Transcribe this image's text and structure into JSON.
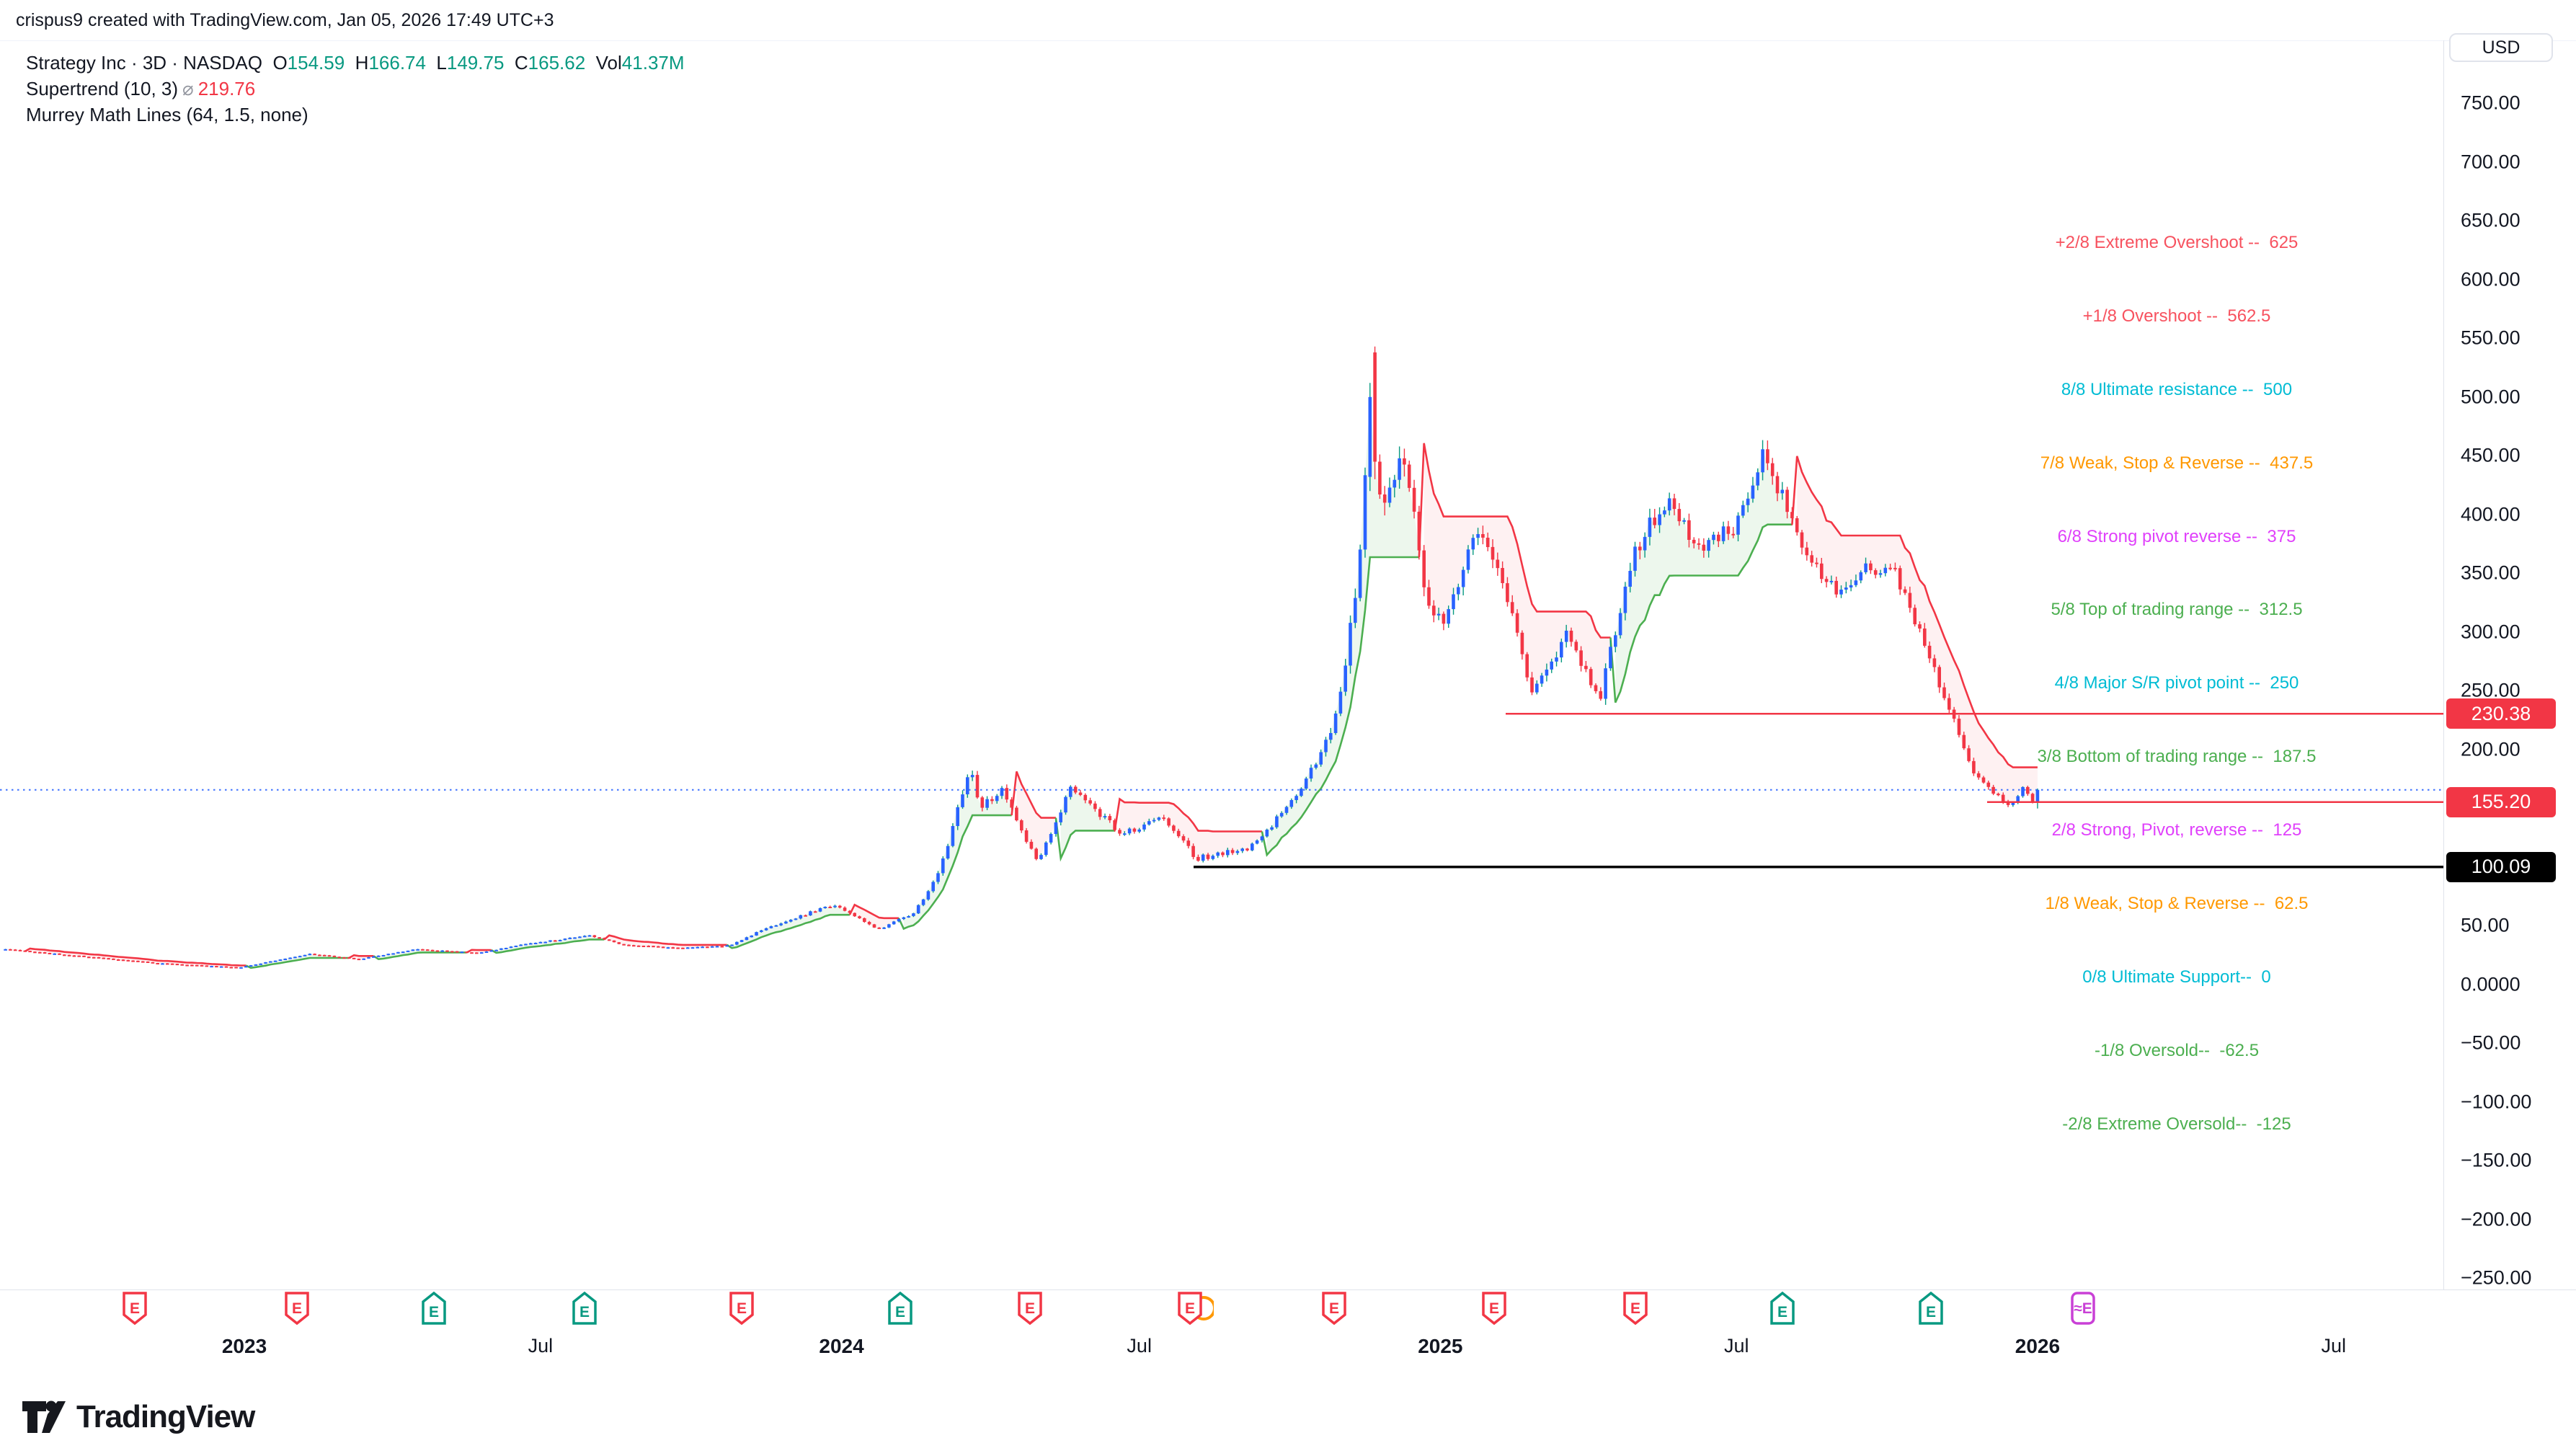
{
  "attribution": "crispus9 created with TradingView.com, Jan 05, 2026 17:49 UTC+3",
  "legend": {
    "symbol_line": {
      "title": "Strategy Inc · 3D · NASDAQ",
      "fields": [
        {
          "label": "O",
          "value": "154.59"
        },
        {
          "label": "H",
          "value": "166.74"
        },
        {
          "label": "L",
          "value": "149.75"
        },
        {
          "label": "C",
          "value": "165.62"
        },
        {
          "label": "Vol",
          "value": "41.37M"
        }
      ]
    },
    "indicators": [
      {
        "name": "Supertrend",
        "params": "(10, 3)",
        "symbol": "⌀",
        "value": "219.76",
        "value_color": "#f23645"
      },
      {
        "name": "Murrey Math Lines",
        "params": "(64, 1.5, none)",
        "symbol": "",
        "value": "",
        "value_color": ""
      }
    ]
  },
  "price_axis": {
    "currency": "USD",
    "ticks": [
      {
        "label": "750.00",
        "value": 750
      },
      {
        "label": "700.00",
        "value": 700
      },
      {
        "label": "650.00",
        "value": 650
      },
      {
        "label": "600.00",
        "value": 600
      },
      {
        "label": "550.00",
        "value": 550
      },
      {
        "label": "500.00",
        "value": 500
      },
      {
        "label": "450.00",
        "value": 450
      },
      {
        "label": "400.00",
        "value": 400
      },
      {
        "label": "350.00",
        "value": 350
      },
      {
        "label": "300.00",
        "value": 300
      },
      {
        "label": "250.00",
        "value": 250
      },
      {
        "label": "200.00",
        "value": 200
      },
      {
        "label": "50.00",
        "value": 50
      },
      {
        "label": "0.0000",
        "value": 0
      },
      {
        "label": "−50.00",
        "value": -50
      },
      {
        "label": "−100.00",
        "value": -100
      },
      {
        "label": "−150.00",
        "value": -150
      },
      {
        "label": "−200.00",
        "value": -200
      },
      {
        "label": "−250.00",
        "value": -250
      }
    ],
    "badges": [
      {
        "label": "230.38",
        "value": 230.38,
        "bg": "#f23645",
        "fg": "#ffffff"
      },
      {
        "label": "155.20",
        "value": 155.2,
        "bg": "#f23645",
        "fg": "#ffffff"
      },
      {
        "label": "100.09",
        "value": 100.09,
        "bg": "#000000",
        "fg": "#ffffff"
      }
    ]
  },
  "time_axis": {
    "ticks": [
      {
        "label": "2023",
        "date": "2023-01-01",
        "bold": true
      },
      {
        "label": "Jul",
        "date": "2023-07-01",
        "bold": false
      },
      {
        "label": "2024",
        "date": "2024-01-01",
        "bold": true
      },
      {
        "label": "Jul",
        "date": "2024-07-01",
        "bold": false
      },
      {
        "label": "2025",
        "date": "2025-01-01",
        "bold": true
      },
      {
        "label": "Jul",
        "date": "2025-07-01",
        "bold": false
      },
      {
        "label": "2026",
        "date": "2026-01-01",
        "bold": true
      },
      {
        "label": "Jul",
        "date": "2026-07-01",
        "bold": false
      }
    ],
    "event_badges": [
      {
        "date": "2022-10-26",
        "kind": "earnings-down",
        "color": "#f23645",
        "letter": "E"
      },
      {
        "date": "2023-02-02",
        "kind": "earnings-down",
        "color": "#f23645",
        "letter": "E"
      },
      {
        "date": "2023-04-27",
        "kind": "earnings-up",
        "color": "#089981",
        "letter": "E"
      },
      {
        "date": "2023-07-28",
        "kind": "earnings-up",
        "color": "#089981",
        "letter": "E"
      },
      {
        "date": "2023-11-01",
        "kind": "earnings-down",
        "color": "#f23645",
        "letter": "E"
      },
      {
        "date": "2024-02-06",
        "kind": "earnings-up",
        "color": "#089981",
        "letter": "E"
      },
      {
        "date": "2024-04-25",
        "kind": "earnings-down",
        "color": "#f23645",
        "letter": "E"
      },
      {
        "date": "2024-08-01",
        "kind": "earnings-down-split",
        "color": "#f23645",
        "letter": "E",
        "split_color": "#ff9800"
      },
      {
        "date": "2024-10-28",
        "kind": "earnings-down",
        "color": "#f23645",
        "letter": "E"
      },
      {
        "date": "2025-02-03",
        "kind": "earnings-down",
        "color": "#f23645",
        "letter": "E"
      },
      {
        "date": "2025-04-30",
        "kind": "earnings-down",
        "color": "#f23645",
        "letter": "E"
      },
      {
        "date": "2025-07-29",
        "kind": "earnings-up",
        "color": "#089981",
        "letter": "E"
      },
      {
        "date": "2025-10-28",
        "kind": "earnings-up",
        "color": "#089981",
        "letter": "E"
      },
      {
        "date": "2026-01-29",
        "kind": "earnings-projected",
        "color": "#c940d6",
        "letter": "≈E"
      }
    ]
  },
  "murrey_labels": [
    {
      "text": "+2/8 Extreme Overshoot --  625",
      "value": 625,
      "color": "#f7525f"
    },
    {
      "text": "+1/8 Overshoot --  562.5",
      "value": 562.5,
      "color": "#f7525f"
    },
    {
      "text": "8/8 Ultimate resistance --  500",
      "value": 500,
      "color": "#00bcd4"
    },
    {
      "text": "7/8 Weak, Stop & Reverse --  437.5",
      "value": 437.5,
      "color": "#ff9800"
    },
    {
      "text": "6/8 Strong pivot reverse --  375",
      "value": 375,
      "color": "#e040fb"
    },
    {
      "text": "5/8 Top of trading range --  312.5",
      "value": 312.5,
      "color": "#4caf50"
    },
    {
      "text": "4/8 Major S/R pivot point --  250",
      "value": 250,
      "color": "#00bcd4"
    },
    {
      "text": "3/8 Bottom of trading range --  187.5",
      "value": 187.5,
      "color": "#4caf50"
    },
    {
      "text": "2/8 Strong, Pivot, reverse --  125",
      "value": 125,
      "color": "#e040fb"
    },
    {
      "text": "1/8 Weak, Stop & Reverse --  62.5",
      "value": 62.5,
      "color": "#ff9800"
    },
    {
      "text": "0/8 Ultimate Support--  0",
      "value": 0,
      "color": "#00bcd4"
    },
    {
      "text": "-1/8 Oversold--  -62.5",
      "value": -62.5,
      "color": "#4caf50"
    },
    {
      "text": "-2/8 Extreme Oversold--  -125",
      "value": -125,
      "color": "#4caf50"
    }
  ],
  "overlays": {
    "current_price_line": {
      "value": 165.62,
      "color": "#2962ff",
      "style": "dotted"
    },
    "rays": [
      {
        "value": 230.38,
        "from": "2025-02-10",
        "color": "#f23645",
        "width": 2.5
      },
      {
        "value": 155.2,
        "from": "2025-12-01",
        "color": "#f23645",
        "width": 2.5
      },
      {
        "value": 100.09,
        "from": "2024-08-03",
        "color": "#000000",
        "width": 3.5
      }
    ]
  },
  "chart_data": {
    "type": "candlestick",
    "title": "Strategy Inc (NASDAQ) — 3D bars with Supertrend (10,3) and Murrey Math Lines (64, 1.5)",
    "timeframe": "3D",
    "x_range": [
      "2022-08-08",
      "2026-07-01"
    ],
    "y_range": [
      -250,
      750
    ],
    "bar_interval_days": 3,
    "last_bar": {
      "o": 154.59,
      "h": 166.74,
      "l": 149.75,
      "c": 165.62
    },
    "anchors": [
      [
        "2022-08-08",
        30,
        0.9
      ],
      [
        "2022-09-16",
        25,
        0.8
      ],
      [
        "2022-11-10",
        18,
        0.9
      ],
      [
        "2022-12-29",
        14.5,
        0.8
      ],
      [
        "2023-02-10",
        26,
        0.8
      ],
      [
        "2023-03-12",
        21.5,
        0.7
      ],
      [
        "2023-04-15",
        30,
        0.7
      ],
      [
        "2023-05-25",
        27,
        0.7
      ],
      [
        "2023-06-16",
        33,
        0.7
      ],
      [
        "2023-07-31",
        42,
        0.9
      ],
      [
        "2023-08-20",
        34,
        0.8
      ],
      [
        "2023-09-22",
        31,
        0.7
      ],
      [
        "2023-10-24",
        33,
        0.8
      ],
      [
        "2023-11-16",
        48,
        1.0
      ],
      [
        "2023-12-27",
        68,
        1.3
      ],
      [
        "2024-01-24",
        47,
        1.1
      ],
      [
        "2024-02-14",
        61,
        1.0
      ],
      [
        "2024-03-01",
        95,
        1.5
      ],
      [
        "2024-03-19",
        186,
        1.8
      ],
      [
        "2024-03-26",
        150,
        1.6
      ],
      [
        "2024-04-08",
        164,
        1.4
      ],
      [
        "2024-04-30",
        104,
        1.3
      ],
      [
        "2024-05-20",
        166,
        1.4
      ],
      [
        "2024-06-21",
        128,
        1.2
      ],
      [
        "2024-07-16",
        142,
        1.2
      ],
      [
        "2024-08-05",
        107,
        1.5
      ],
      [
        "2024-09-06",
        116,
        1.1
      ],
      [
        "2024-10-01",
        152,
        1.2
      ],
      [
        "2024-10-28",
        218,
        1.5
      ],
      [
        "2024-11-11",
        335,
        1.9
      ],
      [
        "2024-11-20",
        500,
        2.0
      ],
      [
        "2024-11-26",
        388,
        2.0
      ],
      [
        "2024-12-09",
        452,
        1.8
      ],
      [
        "2024-12-23",
        332,
        1.6
      ],
      [
        "2025-01-03",
        302,
        1.4
      ],
      [
        "2025-01-24",
        386,
        1.5
      ],
      [
        "2025-02-10",
        336,
        1.4
      ],
      [
        "2025-02-26",
        246,
        1.5
      ],
      [
        "2025-03-20",
        298,
        1.3
      ],
      [
        "2025-04-08",
        243,
        1.4
      ],
      [
        "2025-05-02",
        376,
        1.5
      ],
      [
        "2025-05-22",
        412,
        1.3
      ],
      [
        "2025-06-06",
        372,
        1.2
      ],
      [
        "2025-06-30",
        388,
        1.1
      ],
      [
        "2025-07-17",
        452,
        1.3
      ],
      [
        "2025-08-12",
        368,
        1.2
      ],
      [
        "2025-09-03",
        331,
        1.1
      ],
      [
        "2025-09-16",
        356,
        1.0
      ],
      [
        "2025-10-06",
        348,
        1.2
      ],
      [
        "2025-10-30",
        268,
        1.4
      ],
      [
        "2025-11-14",
        215,
        1.3
      ],
      [
        "2025-11-24",
        178,
        1.2
      ],
      [
        "2025-12-05",
        163,
        1.0
      ],
      [
        "2025-12-16",
        152,
        0.9
      ],
      [
        "2025-12-23",
        168,
        0.9
      ],
      [
        "2025-12-30",
        154,
        0.8
      ],
      [
        "2026-01-02",
        165.62,
        0.5
      ]
    ],
    "event_bars": {
      "2024-11-20": [
        432,
        512,
        420,
        500
      ],
      "2024-11-23": [
        538,
        543,
        430,
        445
      ],
      "2026-01-02": [
        154.59,
        166.74,
        149.75,
        165.62
      ]
    },
    "indicator": {
      "name": "Supertrend",
      "atr_period": 10,
      "multiplier": 3,
      "up_color": "#4caf50",
      "down_color": "#f23645",
      "up_fill": "rgba(76,175,80,0.10)",
      "down_fill": "rgba(242,54,69,0.07)"
    },
    "candle_colors": {
      "up_body": "#2962ff",
      "up_wick": "#089981",
      "down": "#f23645"
    }
  },
  "footer": {
    "brand": "TradingView"
  }
}
